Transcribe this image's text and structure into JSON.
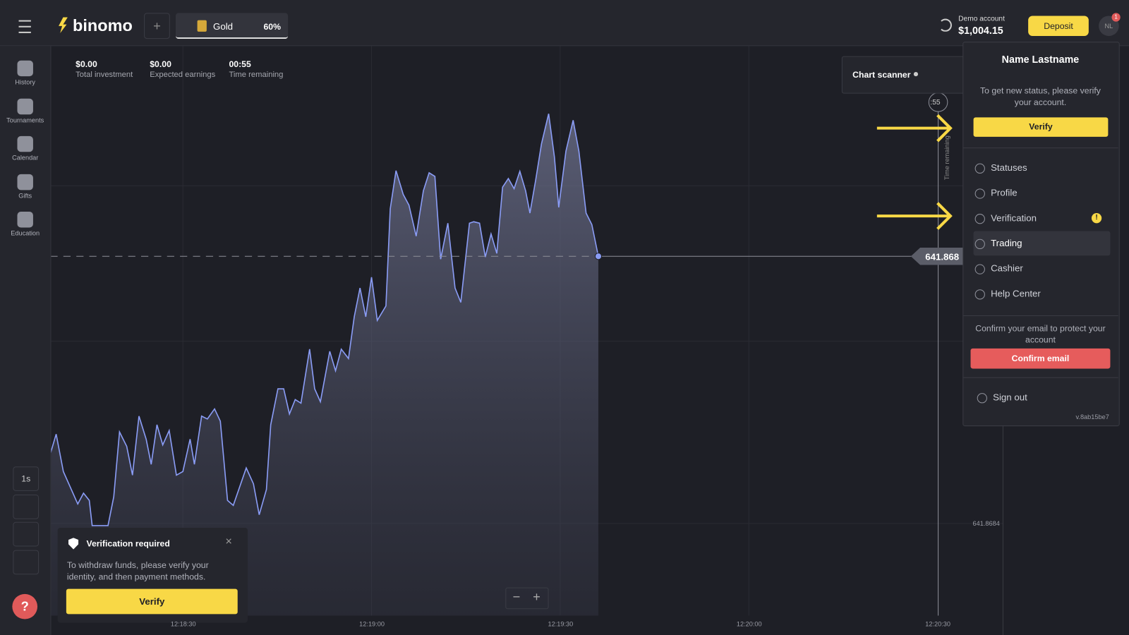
{
  "header": {
    "logo": "binomo",
    "asset": "Gold",
    "payout": "60%",
    "account_type": "Demo account",
    "balance": "$1,004.15",
    "deposit": "Deposit",
    "avatar": "NL",
    "badge": "1"
  },
  "sidebar": {
    "items": [
      "History",
      "Tournaments",
      "Calendar",
      "Gifts",
      "Education"
    ],
    "timeframe": "1s",
    "help": "?"
  },
  "stats": [
    {
      "value": "$0.00",
      "label": "Total investment"
    },
    {
      "value": "$0.00",
      "label": "Expected earnings"
    },
    {
      "value": "00:55",
      "label": "Time remaining"
    }
  ],
  "chart": {
    "scanner": "Chart scanner",
    "countdown": ":55",
    "countdown_label": "Time remaining",
    "price": "641.868",
    "axis_price": "641.8684",
    "times": [
      "12:18:30",
      "12:19:00",
      "12:19:30",
      "12:20:00",
      "12:20:30"
    ]
  },
  "menu": {
    "name": "Name Lastname",
    "status_text": "To get new status, please verify your account.",
    "verify": "Verify",
    "items": [
      "Statuses",
      "Profile",
      "Verification",
      "Trading",
      "Cashier",
      "Help Center"
    ],
    "email_text": "Confirm your email to protect your account",
    "confirm_email": "Confirm email",
    "sign_out": "Sign out",
    "version": "v.8ab15be7"
  },
  "notification": {
    "title": "Verification required",
    "text": "To withdraw funds, please verify your identity, and then payment methods.",
    "button": "Verify"
  }
}
